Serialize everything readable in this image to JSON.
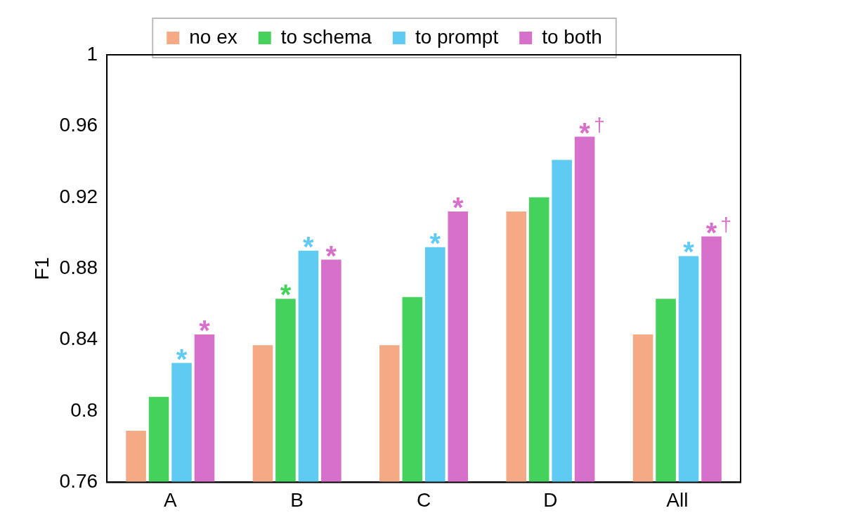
{
  "chart_data": {
    "type": "bar",
    "ylabel": "F1",
    "categories": [
      "A",
      "B",
      "C",
      "D",
      "All"
    ],
    "series": [
      {
        "name": "no ex",
        "color": "#f4aa84",
        "values": [
          0.789,
          0.837,
          0.837,
          0.912,
          0.843
        ]
      },
      {
        "name": "to schema",
        "color": "#44d15c",
        "values": [
          0.808,
          0.863,
          0.864,
          0.92,
          0.863
        ],
        "value_labels": [
          null,
          "*",
          null,
          null,
          null
        ]
      },
      {
        "name": "to prompt",
        "color": "#5fcbf2",
        "values": [
          0.827,
          0.89,
          0.892,
          0.941,
          0.887
        ],
        "value_labels": [
          "*",
          "*",
          "*",
          null,
          "*"
        ]
      },
      {
        "name": "to both",
        "color": "#d670cb",
        "values": [
          0.843,
          0.885,
          0.912,
          0.954,
          0.898
        ],
        "value_labels": [
          "*",
          "*",
          "*",
          "*†",
          "*†"
        ]
      }
    ],
    "ylim": [
      0.76,
      1
    ],
    "yticks": [
      0.76,
      0.8,
      0.84,
      0.88,
      0.92,
      0.96,
      1
    ],
    "grid": false,
    "legend": "top"
  }
}
